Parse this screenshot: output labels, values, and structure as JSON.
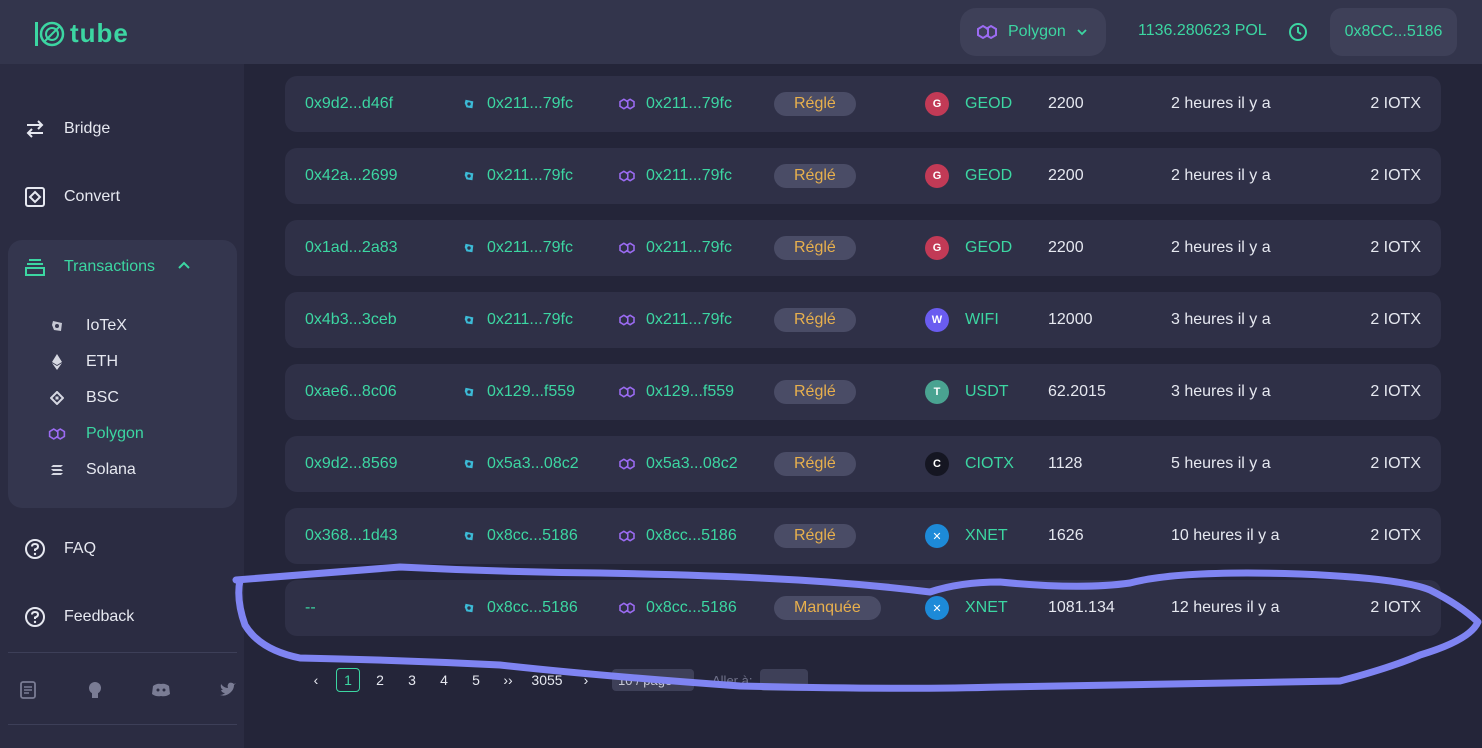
{
  "header": {
    "logo_text": "tube",
    "network": "Polygon",
    "balance": "1136.280623 POL",
    "address": "0x8CC...5186"
  },
  "sidebar": {
    "bridge": "Bridge",
    "convert": "Convert",
    "transactions": "Transactions",
    "sub_items": [
      "IoTeX",
      "ETH",
      "BSC",
      "Polygon",
      "Solana"
    ],
    "faq": "FAQ",
    "feedback": "Feedback"
  },
  "rows": [
    {
      "hash": "0x9d2...d46f",
      "from": "0x211...79fc",
      "to": "0x211...79fc",
      "status": "Réglé",
      "token": "GEOD",
      "amount": "2200",
      "time": "2 heures il y a",
      "fee": "2 IOTX"
    },
    {
      "hash": "0x42a...2699",
      "from": "0x211...79fc",
      "to": "0x211...79fc",
      "status": "Réglé",
      "token": "GEOD",
      "amount": "2200",
      "time": "2 heures il y a",
      "fee": "2 IOTX"
    },
    {
      "hash": "0x1ad...2a83",
      "from": "0x211...79fc",
      "to": "0x211...79fc",
      "status": "Réglé",
      "token": "GEOD",
      "amount": "2200",
      "time": "2 heures il y a",
      "fee": "2 IOTX"
    },
    {
      "hash": "0x4b3...3ceb",
      "from": "0x211...79fc",
      "to": "0x211...79fc",
      "status": "Réglé",
      "token": "WIFI",
      "amount": "12000",
      "time": "3 heures il y a",
      "fee": "2 IOTX"
    },
    {
      "hash": "0xae6...8c06",
      "from": "0x129...f559",
      "to": "0x129...f559",
      "status": "Réglé",
      "token": "USDT",
      "amount": "62.2015",
      "time": "3 heures il y a",
      "fee": "2 IOTX"
    },
    {
      "hash": "0x9d2...8569",
      "from": "0x5a3...08c2",
      "to": "0x5a3...08c2",
      "status": "Réglé",
      "token": "CIOTX",
      "amount": "1128",
      "time": "5 heures il y a",
      "fee": "2 IOTX"
    },
    {
      "hash": "0x368...1d43",
      "from": "0x8cc...5186",
      "to": "0x8cc...5186",
      "status": "Réglé",
      "token": "XNET",
      "amount": "1626",
      "time": "10 heures il y a",
      "fee": "2 IOTX"
    },
    {
      "hash": "--",
      "from": "0x8cc...5186",
      "to": "0x8cc...5186",
      "status": "Manquée",
      "token": "XNET",
      "amount": "1081.134",
      "time": "12 heures il y a",
      "fee": "2 IOTX"
    }
  ],
  "pagination": {
    "prev": "‹",
    "pages": [
      "1",
      "2",
      "3",
      "4",
      "5"
    ],
    "jump": "››",
    "last": "3055",
    "next": "›",
    "page_size": "10 / page",
    "goto_label": "Aller à:"
  },
  "colors": {
    "accent": "#3cd6a2",
    "badge_text": "#e8b04d",
    "annotation": "#7f84f2"
  }
}
